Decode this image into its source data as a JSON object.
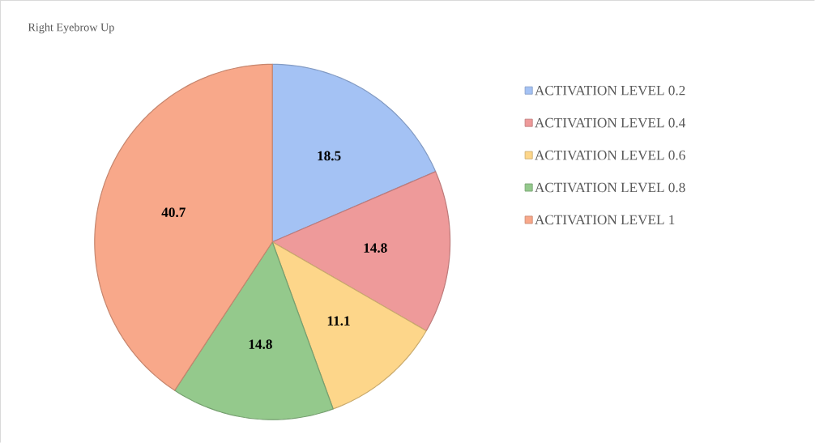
{
  "chart_data": {
    "type": "pie",
    "title": "Right Eyebrow  Up",
    "categories": [
      "ACTIVATION LEVEL  0.2",
      "ACTIVATION LEVEL 0.4",
      "ACTIVATION LEVEL  0.6",
      "ACTIVATION LEVEL 0.8",
      "ACTIVATION LEVEL 1"
    ],
    "values": [
      18.5,
      14.8,
      11.1,
      14.8,
      40.7
    ],
    "colors": [
      "#a4c2f4",
      "#ee9a9a",
      "#fdd68a",
      "#94c98c",
      "#f8a88a"
    ],
    "data_labels": true,
    "legend": "right"
  }
}
